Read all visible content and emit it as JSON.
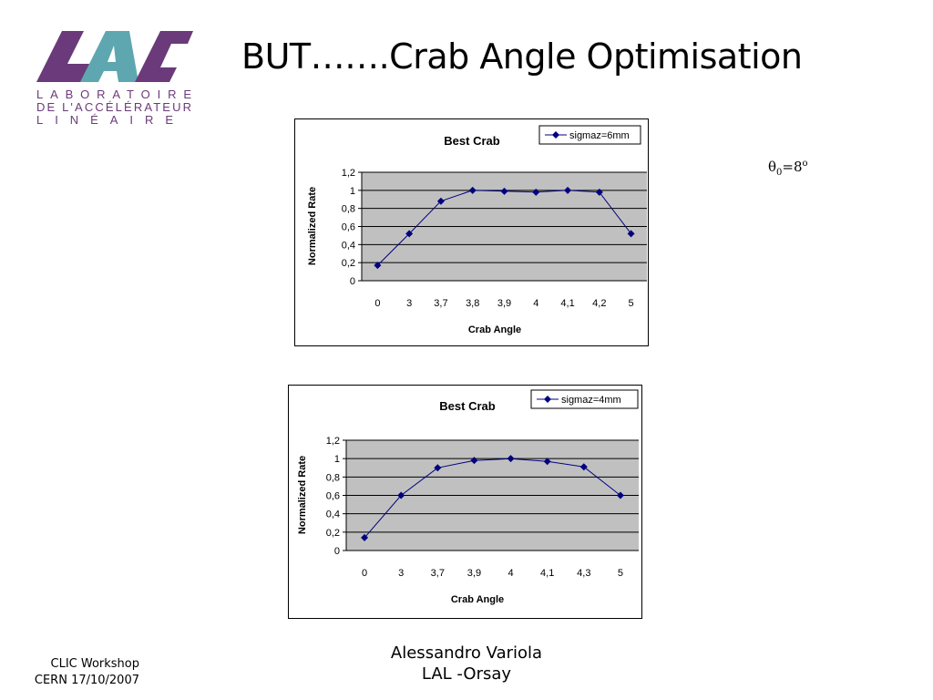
{
  "logo": {
    "line1": "LABORATOIRE",
    "line2": "DE L'ACCÉLÉRATEUR",
    "line3": "LINÉAIRE",
    "colors": {
      "dark": "#6b3a7a",
      "light": "#5fa7b0"
    }
  },
  "slide": {
    "title": "BUT…….Crab Angle Optimisation",
    "theta_symbol": "θ",
    "theta_sub": "0",
    "theta_eq": "=8",
    "theta_sup": "o"
  },
  "footer": {
    "left_line1": "CLIC Workshop",
    "left_line2": "CERN 17/10/2007",
    "center_line1": "Alessandro Variola",
    "center_line2": "LAL -Orsay"
  },
  "chart_data": [
    {
      "type": "line",
      "title": "Best Crab",
      "xlabel": "Crab Angle",
      "ylabel": "Normalized Rate",
      "categories": [
        "0",
        "3",
        "3,7",
        "3,8",
        "3,9",
        "4",
        "4,1",
        "4,2",
        "5"
      ],
      "series": [
        {
          "name": "sigmaz=6mm",
          "values": [
            0.17,
            0.52,
            0.88,
            1.0,
            0.99,
            0.98,
            1.0,
            0.98,
            0.52
          ],
          "color": "#000080"
        }
      ],
      "yticks": [
        "0",
        "0,2",
        "0,4",
        "0,6",
        "0,8",
        "1",
        "1,2"
      ],
      "ylim": [
        0,
        1.2
      ],
      "grid": true,
      "legend": "top-right",
      "plot_bg": "#c0c0c0"
    },
    {
      "type": "line",
      "title": "Best Crab",
      "xlabel": "Crab Angle",
      "ylabel": "Normalized Rate",
      "categories": [
        "0",
        "3",
        "3,7",
        "3,9",
        "4",
        "4,1",
        "4,3",
        "5"
      ],
      "series": [
        {
          "name": "sigmaz=4mm",
          "values": [
            0.14,
            0.6,
            0.9,
            0.98,
            1.0,
            0.97,
            0.91,
            0.6
          ],
          "color": "#000080"
        }
      ],
      "yticks": [
        "0",
        "0,2",
        "0,4",
        "0,6",
        "0,8",
        "1",
        "1,2"
      ],
      "ylim": [
        0,
        1.2
      ],
      "grid": true,
      "legend": "top-right",
      "plot_bg": "#c0c0c0"
    }
  ]
}
